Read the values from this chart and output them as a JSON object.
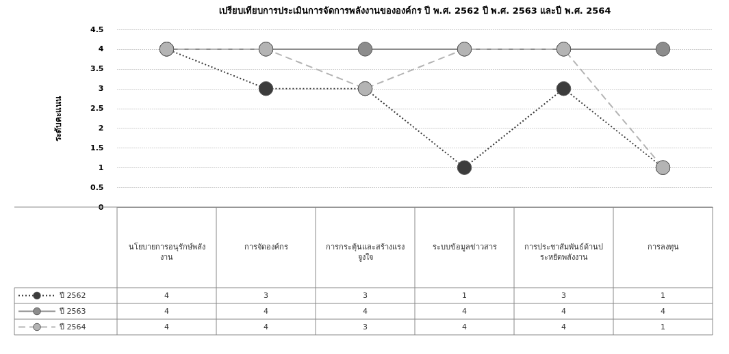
{
  "chart_data": {
    "type": "line",
    "title": "เปรียบเทียบการประเมินการจัดการพลังงานขององค์กร ปี พ.ศ. 2562 ปี พ.ศ. 2563 และปี พ.ศ. 2564",
    "ylabel": "ระดับคะแนน",
    "categories": [
      "นโยบายการอนุรักษ์พลังงาน",
      "การจัดองค์กร",
      "การกระตุ้นและสร้างแรงจูงใจ",
      "ระบบข้อมูลข่าวสาร",
      "การประชาสัมพันธ์ด้านประหยัดพลังงาน",
      "การลงทุน"
    ],
    "series": [
      {
        "name": "ปี 2562",
        "color": "#3c3c3c",
        "line_style": "dotted",
        "values": [
          4,
          3,
          3,
          1,
          3,
          1
        ]
      },
      {
        "name": "ปี 2563",
        "color": "#8c8c8c",
        "line_style": "solid",
        "values": [
          4,
          4,
          4,
          4,
          4,
          4
        ]
      },
      {
        "name": "ปี 2564",
        "color": "#b4b4b4",
        "line_style": "dashed",
        "values": [
          4,
          4,
          3,
          4,
          4,
          1
        ]
      }
    ],
    "ylim": [
      0,
      4.5
    ],
    "yticks": [
      0,
      0.5,
      1,
      1.5,
      2,
      2.5,
      3,
      3.5,
      4,
      4.5
    ],
    "grid": "y",
    "marker": "circle",
    "legend": "bottom left",
    "data_labels": true
  }
}
